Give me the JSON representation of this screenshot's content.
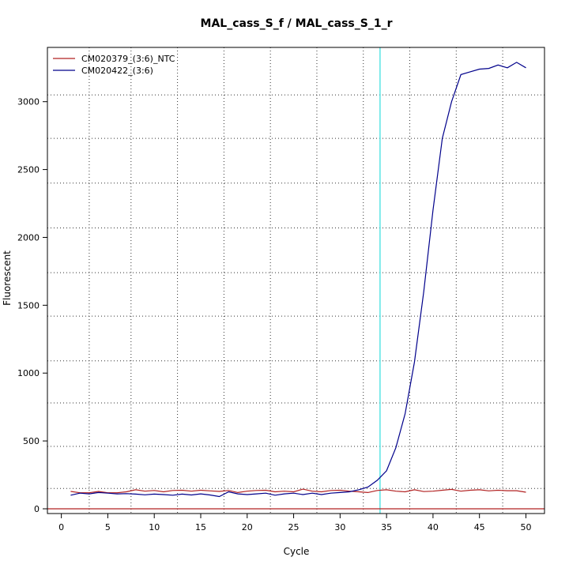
{
  "chart_data": {
    "type": "line",
    "title": "MAL_cass_S_f / MAL_cass_S_1_r",
    "xlabel": "Cycle",
    "ylabel": "Fluorescent",
    "xlim": [
      -1.5,
      52
    ],
    "ylim": [
      -35,
      3400
    ],
    "x_ticks": [
      0,
      5,
      10,
      15,
      20,
      25,
      30,
      35,
      40,
      45,
      50
    ],
    "y_ticks": [
      0,
      500,
      1000,
      1500,
      2000,
      2500,
      3000
    ],
    "grid": true,
    "grid_x": [
      3,
      7.5,
      12.5,
      17.5,
      22.5,
      27.5,
      32.5,
      37.5,
      42.5,
      47.5
    ],
    "grid_y": [
      150,
      460,
      780,
      1090,
      1420,
      1740,
      2070,
      2400,
      2730,
      3050
    ],
    "legend_position": "top-left",
    "threshold": {
      "x": 34.3,
      "color": "#40e0e0"
    },
    "baseline": {
      "y": 0,
      "color": "#b22222"
    },
    "series": [
      {
        "name": "CM020379_(3:6)_NTC",
        "color": "#b22222",
        "x": [
          1,
          2,
          3,
          4,
          5,
          6,
          7,
          8,
          9,
          10,
          11,
          12,
          13,
          14,
          15,
          16,
          17,
          18,
          19,
          20,
          21,
          22,
          23,
          24,
          25,
          26,
          27,
          28,
          29,
          30,
          31,
          32,
          33,
          34,
          35,
          36,
          37,
          38,
          39,
          40,
          41,
          42,
          43,
          44,
          45,
          46,
          47,
          48,
          49,
          50
        ],
        "y": [
          128,
          118,
          118,
          128,
          118,
          118,
          125,
          140,
          130,
          135,
          125,
          135,
          137,
          130,
          137,
          132,
          128,
          135,
          120,
          130,
          135,
          137,
          125,
          130,
          125,
          145,
          130,
          125,
          135,
          137,
          130,
          125,
          120,
          135,
          140,
          130,
          125,
          140,
          127,
          130,
          137,
          143,
          130,
          137,
          140,
          132,
          137,
          133,
          133,
          122
        ]
      },
      {
        "name": "CM020422_(3:6)",
        "color": "#00008b",
        "x": [
          1,
          2,
          3,
          4,
          5,
          6,
          7,
          8,
          9,
          10,
          11,
          12,
          13,
          14,
          15,
          16,
          17,
          18,
          19,
          20,
          21,
          22,
          23,
          24,
          25,
          26,
          27,
          28,
          29,
          30,
          31,
          32,
          33,
          34,
          35,
          36,
          37,
          38,
          39,
          40,
          41,
          42,
          43,
          44,
          45,
          46,
          47,
          48,
          49,
          50
        ],
        "y": [
          100,
          115,
          110,
          120,
          115,
          110,
          112,
          108,
          103,
          108,
          105,
          100,
          108,
          102,
          110,
          102,
          90,
          125,
          110,
          105,
          110,
          115,
          100,
          110,
          115,
          105,
          115,
          105,
          115,
          120,
          125,
          140,
          160,
          210,
          280,
          450,
          700,
          1080,
          1600,
          2200,
          2730,
          3000,
          3200,
          3220,
          3240,
          3245,
          3270,
          3250,
          3290,
          3250
        ]
      }
    ]
  }
}
